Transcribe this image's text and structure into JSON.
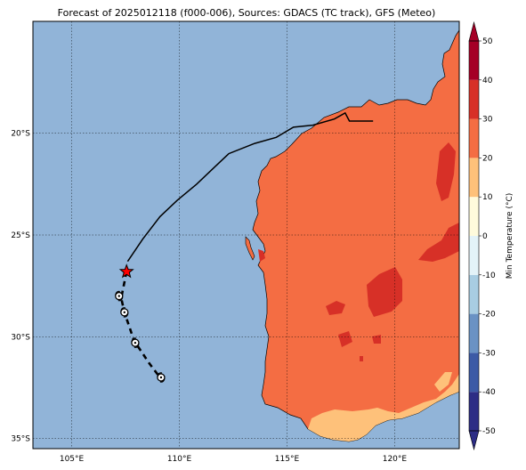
{
  "title": "Forecast of 2025012118 (f000-006), Sources: GDACS (TC track), GFS (Meteo)",
  "map": {
    "lon_range": [
      103.2,
      123.0
    ],
    "lat_range": [
      -35.5,
      -14.5
    ],
    "x_ticks": [
      {
        "value": 105,
        "label": "105°E"
      },
      {
        "value": 110,
        "label": "110°E"
      },
      {
        "value": 115,
        "label": "115°E"
      },
      {
        "value": 120,
        "label": "120°E"
      }
    ],
    "y_ticks": [
      {
        "value": -20,
        "label": "20°S"
      },
      {
        "value": -25,
        "label": "25°S"
      },
      {
        "value": -30,
        "label": "30°S"
      },
      {
        "value": -35,
        "label": "35°S"
      }
    ],
    "grid": true,
    "ocean_color": "#91b4d8"
  },
  "colorbar": {
    "label": "Min Temperature (°C)",
    "orientation": "vertical",
    "placement": "right",
    "levels": [
      -50,
      -40,
      -30,
      -20,
      -10,
      0,
      10,
      20,
      30,
      40,
      50
    ],
    "colors": [
      "#2d2d85",
      "#3c5aa6",
      "#6a92c4",
      "#a8cde2",
      "#e3f3f8",
      "#fffbdc",
      "#fec17a",
      "#f46d43",
      "#d73027",
      "#a50026"
    ],
    "extend": "both"
  },
  "observed_track": {
    "color": "#000000",
    "points": [
      [
        119.0,
        -19.4
      ],
      [
        117.9,
        -19.4
      ],
      [
        117.7,
        -19.0
      ],
      [
        117.2,
        -19.3
      ],
      [
        116.2,
        -19.6
      ],
      [
        115.3,
        -19.7
      ],
      [
        114.5,
        -20.2
      ],
      [
        113.5,
        -20.5
      ],
      [
        112.3,
        -21.0
      ],
      [
        111.6,
        -21.7
      ],
      [
        110.8,
        -22.5
      ],
      [
        109.9,
        -23.3
      ],
      [
        109.1,
        -24.1
      ],
      [
        108.3,
        -25.2
      ],
      [
        107.6,
        -26.3
      ]
    ]
  },
  "current_position": {
    "lon": 107.55,
    "lat": -26.8,
    "marker": "red-star-icon",
    "color": "#ff0000"
  },
  "forecast_track": {
    "style": "dashed",
    "points": [
      [
        107.55,
        -26.8
      ],
      [
        107.3,
        -28.1
      ],
      [
        107.45,
        -28.8
      ],
      [
        107.9,
        -30.2
      ],
      [
        108.6,
        -31.3
      ],
      [
        109.1,
        -32.0
      ]
    ],
    "markers": [
      {
        "lon": 107.2,
        "lat": -28.0,
        "icon": "cyclone-icon"
      },
      {
        "lon": 107.45,
        "lat": -28.8,
        "icon": "cyclone-icon"
      },
      {
        "lon": 107.95,
        "lat": -30.3,
        "icon": "cyclone-icon"
      },
      {
        "lon": 109.15,
        "lat": -32.0,
        "icon": "cyclone-icon"
      }
    ]
  }
}
